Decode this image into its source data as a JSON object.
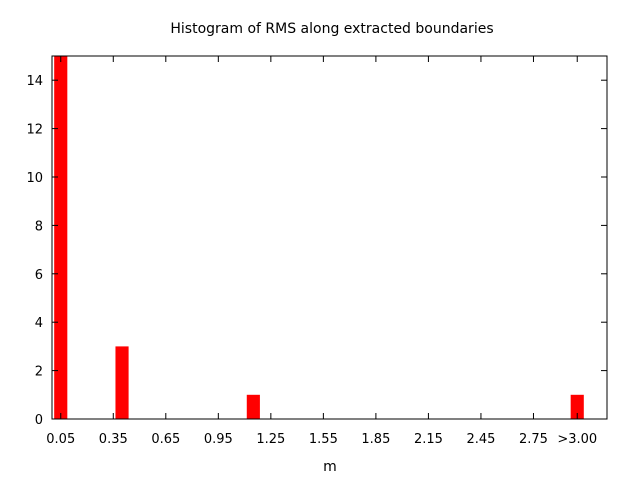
{
  "chart_data": {
    "type": "bar",
    "title": "Histogram of RMS along extracted boundaries",
    "xlabel": "m",
    "ylabel": "",
    "x_tick_labels": [
      "0.05",
      "0.35",
      "0.65",
      "0.95",
      "1.25",
      "1.55",
      "1.85",
      "2.15",
      "2.45",
      "2.75",
      ">3.00"
    ],
    "x_ticks": [
      0.05,
      0.35,
      0.65,
      0.95,
      1.25,
      1.55,
      1.85,
      2.15,
      2.45,
      2.75,
      3.0
    ],
    "xlim": [
      0.0,
      3.17
    ],
    "y_ticks": [
      0,
      2,
      4,
      6,
      8,
      10,
      12,
      14
    ],
    "ylim": [
      0,
      15
    ],
    "bin_width": 0.075,
    "bars": [
      {
        "x": 0.05,
        "value": 15
      },
      {
        "x": 0.4,
        "value": 3
      },
      {
        "x": 1.15,
        "value": 1
      },
      {
        "x": 3.0,
        "value": 1
      }
    ],
    "bar_color": "#ff0000",
    "grid": false,
    "legend": "none"
  }
}
